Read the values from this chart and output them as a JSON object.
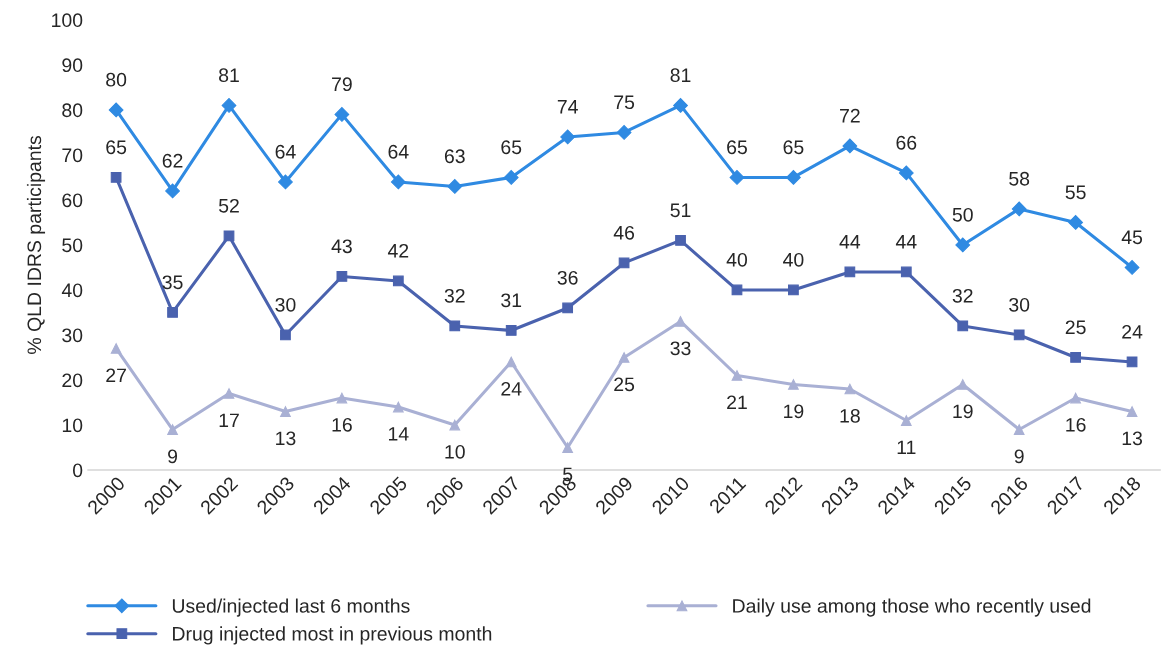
{
  "chart_data": {
    "type": "line",
    "ylabel": "% QLD IDRS participants",
    "categories": [
      "2000",
      "2001",
      "2002",
      "2003",
      "2004",
      "2005",
      "2006",
      "2007",
      "2008",
      "2009",
      "2010",
      "2011",
      "2012",
      "2013",
      "2014",
      "2015",
      "2016",
      "2017",
      "2018"
    ],
    "series": [
      {
        "name": "Used/injected last 6 months",
        "color": "#2f8ae2",
        "marker": "diamond",
        "values": [
          80,
          62,
          81,
          64,
          79,
          64,
          63,
          65,
          74,
          75,
          81,
          65,
          65,
          72,
          66,
          50,
          58,
          55,
          45
        ]
      },
      {
        "name": "Drug injected most in previous month",
        "color": "#4a62ae",
        "marker": "square",
        "values": [
          65,
          35,
          52,
          30,
          43,
          42,
          32,
          31,
          36,
          46,
          51,
          40,
          40,
          44,
          44,
          32,
          30,
          25,
          24
        ]
      },
      {
        "name": "Daily use among those who recently used",
        "color": "#a9b0d4",
        "marker": "triangle",
        "values": [
          27,
          9,
          17,
          13,
          16,
          14,
          10,
          24,
          5,
          25,
          33,
          21,
          19,
          18,
          11,
          19,
          9,
          16,
          13
        ]
      }
    ],
    "ylim": [
      0,
      100
    ],
    "yticks": [
      0,
      10,
      20,
      30,
      40,
      50,
      60,
      70,
      80,
      90,
      100
    ],
    "data_labels": true,
    "grid": false,
    "legend": "bottom",
    "line_style": "solid"
  }
}
